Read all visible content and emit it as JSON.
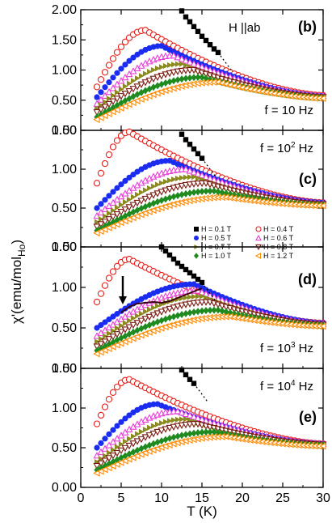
{
  "chart_data": {
    "type": "scatter",
    "xlabel": "T (K)",
    "ylabel": {
      "main": "χ'(emu/mol",
      "sub": "Ho",
      "tail": ")"
    },
    "xlim": [
      0,
      30
    ],
    "xticks": [
      "0",
      "5",
      "10",
      "15",
      "20",
      "25",
      "30"
    ],
    "legend": {
      "placement": "inside panel (c), lower right",
      "entries": [
        {
          "label": "H = 0.1 T",
          "color": "#000000",
          "marker": "square-filled"
        },
        {
          "label": "H = 0.4 T",
          "color": "#e8201c",
          "marker": "circle-open"
        },
        {
          "label": "H = 0.5 T",
          "color": "#1a2cf0",
          "marker": "circle-filled"
        },
        {
          "label": "H = 0.6 T",
          "color": "#e83fd8",
          "marker": "triangle-up-open"
        },
        {
          "label": "H = 0.7 T",
          "color": "#8a8a1e",
          "marker": "triangle-right-filled"
        },
        {
          "label": "H = 0.8 T",
          "color": "#7a1a10",
          "marker": "triangle-down-open"
        },
        {
          "label": "H = 1.0 T",
          "color": "#1f8a1f",
          "marker": "diamond-filled"
        },
        {
          "label": "H = 1.2 T",
          "color": "#ff8a00",
          "marker": "triangle-left-open"
        }
      ]
    },
    "panels": [
      {
        "label": "(b)",
        "note": "H ||ab",
        "freq": "f = 10 Hz",
        "freq_pos": "bottom",
        "yticks": [
          "0.00",
          "0.50",
          "1.00",
          "1.50",
          "2.00"
        ],
        "ylim": [
          0,
          2
        ],
        "series": [
          {
            "label": "H = 0.1 T",
            "x": [
              12.5,
              13,
              13.5,
              14,
              14.5,
              15,
              15.5,
              16,
              16.5,
              17
            ],
            "y": [
              1.98,
              1.88,
              1.8,
              1.72,
              1.64,
              1.56,
              1.49,
              1.42,
              1.35,
              1.29
            ]
          },
          {
            "label": "H = 0.4 T",
            "peak": [
              8,
              1.66
            ],
            "start": 0.72,
            "end": 0.58
          },
          {
            "label": "H = 0.5 T",
            "peak": [
              10,
              1.4
            ],
            "start": 0.55,
            "end": 0.57
          },
          {
            "label": "H = 0.6 T",
            "peak": [
              11.5,
              1.24
            ],
            "start": 0.44,
            "end": 0.57
          },
          {
            "label": "H = 0.7 T",
            "peak": [
              12.5,
              1.1
            ],
            "start": 0.36,
            "end": 0.56
          },
          {
            "label": "H = 0.8 T",
            "peak": [
              14,
              1.0
            ],
            "start": 0.3,
            "end": 0.55
          },
          {
            "label": "H = 1.0 T",
            "peak": [
              15,
              0.88
            ],
            "start": 0.22,
            "end": 0.54
          },
          {
            "label": "H = 1.2 T",
            "peak": [
              17,
              0.8
            ],
            "start": 0.18,
            "end": 0.53
          }
        ]
      },
      {
        "label": "(c)",
        "note": "",
        "freq": "f = 10",
        "freq_sup": "2",
        "freq_unit": " Hz",
        "freq_pos": "top",
        "yticks": [
          "0.00",
          "0.50",
          "1.00",
          "1.50"
        ],
        "ylim": [
          0,
          1.5
        ],
        "series": [
          {
            "label": "H = 0.1 T",
            "x": [
              12.5,
              13,
              13.5,
              14,
              14.5,
              15
            ],
            "y": [
              1.45,
              1.38,
              1.32,
              1.26,
              1.2,
              1.14
            ]
          },
          {
            "label": "H = 0.4 T",
            "peak": [
              6,
              1.48
            ],
            "start": 0.82,
            "end": 0.57
          },
          {
            "label": "H = 0.5 T",
            "peak": [
              11,
              1.11
            ],
            "start": 0.5,
            "end": 0.57
          },
          {
            "label": "H = 0.6 T",
            "peak": [
              13,
              1.0
            ],
            "start": 0.4,
            "end": 0.56
          },
          {
            "label": "H = 0.7 T",
            "peak": [
              14,
              0.9
            ],
            "start": 0.32,
            "end": 0.55
          },
          {
            "label": "H = 0.8 T",
            "peak": [
              15.5,
              0.82
            ],
            "start": 0.26,
            "end": 0.55
          },
          {
            "label": "H = 1.0 T",
            "peak": [
              16.5,
              0.72
            ],
            "start": 0.21,
            "end": 0.54
          },
          {
            "label": "H = 1.2 T",
            "peak": [
              18,
              0.64
            ],
            "start": 0.18,
            "end": 0.53
          }
        ]
      },
      {
        "label": "(d)",
        "note": "",
        "freq": "f = 10",
        "freq_sup": "3",
        "freq_unit": " Hz",
        "freq_pos": "bottom",
        "yticks": [
          "0.00",
          "0.50",
          "1.00",
          "1.50"
        ],
        "ylim": [
          0,
          1.5
        ],
        "series": [
          {
            "label": "H = 0.1 T",
            "x": [
              10,
              10.5,
              11,
              11.5,
              12,
              12.5,
              13,
              13.5,
              14,
              14.5,
              15
            ],
            "y": [
              1.5,
              1.45,
              1.4,
              1.35,
              1.3,
              1.26,
              1.22,
              1.18,
              1.14,
              1.1,
              1.06
            ]
          },
          {
            "label": "H = 0.4 T",
            "peak": [
              6,
              1.35
            ],
            "start": 0.82,
            "end": 0.56
          },
          {
            "label": "H = 0.5 T",
            "peak": [
              14,
              1.04
            ],
            "start": 0.5,
            "end": 0.56
          },
          {
            "label": "H = 0.6 T",
            "peak": [
              14.5,
              0.96
            ],
            "start": 0.4,
            "end": 0.55
          },
          {
            "label": "H = 0.7 T",
            "peak": [
              15,
              0.89
            ],
            "start": 0.33,
            "end": 0.55
          },
          {
            "label": "H = 0.8 T",
            "peak": [
              16,
              0.82
            ],
            "start": 0.27,
            "end": 0.54
          },
          {
            "label": "H = 1.0 T",
            "peak": [
              17,
              0.72
            ],
            "start": 0.22,
            "end": 0.53
          },
          {
            "label": "H = 1.2 T",
            "peak": [
              18.5,
              0.64
            ],
            "start": 0.18,
            "end": 0.52
          }
        ],
        "annotation": {
          "arrow_x": 5.2,
          "arrow_from_y": 1.14,
          "arrow_to_y": 0.79
        },
        "guide_curve": {
          "x": [
            5,
            6,
            7,
            8,
            9,
            10,
            11,
            12,
            13,
            14,
            15
          ],
          "y": [
            0.69,
            0.76,
            0.8,
            0.81,
            0.82,
            0.81,
            0.83,
            0.87,
            0.91,
            0.95,
            0.99
          ]
        }
      },
      {
        "label": "(e)",
        "note": "",
        "freq": "f = 10",
        "freq_sup": "4",
        "freq_unit": " Hz",
        "freq_pos": "top",
        "yticks": [
          "0.00",
          "0.50",
          "1.00",
          "1.50"
        ],
        "ylim": [
          0,
          1.5
        ],
        "series": [
          {
            "label": "H = 0.1 T",
            "x": [
              12.5,
              13,
              13.5,
              14
            ],
            "y": [
              1.48,
              1.42,
              1.36,
              1.31
            ]
          },
          {
            "label": "H = 0.4 T",
            "peak": [
              6,
              1.36
            ],
            "start": 0.8,
            "end": 0.55
          },
          {
            "label": "H = 0.5 T",
            "peak": [
              9.5,
              1.05
            ],
            "start": 0.5,
            "end": 0.55
          },
          {
            "label": "H = 0.6 T",
            "peak": [
              12,
              0.96
            ],
            "start": 0.4,
            "end": 0.55
          },
          {
            "label": "H = 0.7 T",
            "peak": [
              13,
              0.86
            ],
            "start": 0.32,
            "end": 0.54
          },
          {
            "label": "H = 0.8 T",
            "peak": [
              14.5,
              0.8
            ],
            "start": 0.27,
            "end": 0.54
          },
          {
            "label": "H = 1.0 T",
            "peak": [
              16.5,
              0.7
            ],
            "start": 0.22,
            "end": 0.53
          },
          {
            "label": "H = 1.2 T",
            "peak": [
              18,
              0.64
            ],
            "start": 0.18,
            "end": 0.52
          }
        ]
      }
    ]
  }
}
